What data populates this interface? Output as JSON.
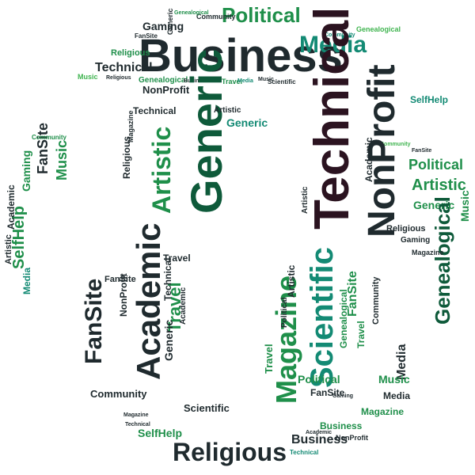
{
  "palette": {
    "dark": "#1f2a2e",
    "deep_green": "#0e5a3a",
    "mid_green": "#1f8f4a",
    "teal": "#138a74",
    "light_green": "#3fb44f",
    "plum": "#2b1320"
  },
  "words": [
    {
      "id": "business-main",
      "text": "Business",
      "tone": "dark"
    },
    {
      "id": "political-top",
      "text": "Political",
      "tone": "mid_green"
    },
    {
      "id": "media-top",
      "text": "Media",
      "tone": "teal"
    },
    {
      "id": "community-top",
      "text": "Community",
      "tone": "dark"
    },
    {
      "id": "gaming-top",
      "text": "Gaming",
      "tone": "dark"
    },
    {
      "id": "genealogical-top",
      "text": "Genealogical",
      "tone": "mid_green"
    },
    {
      "id": "generic-top",
      "text": "Generic",
      "tone": "dark"
    },
    {
      "id": "community-top2",
      "text": "Community",
      "tone": "teal"
    },
    {
      "id": "religious-top",
      "text": "Religious",
      "tone": "mid_green"
    },
    {
      "id": "fansite-top",
      "text": "FanSite",
      "tone": "dark"
    },
    {
      "id": "technical-top",
      "text": "Technical",
      "tone": "dark"
    },
    {
      "id": "music-top",
      "text": "Music",
      "tone": "light_green"
    },
    {
      "id": "religious-top2",
      "text": "Religious",
      "tone": "dark"
    },
    {
      "id": "genealogical-mid",
      "text": "Genealogical",
      "tone": "mid_green"
    },
    {
      "id": "nonprofit-mid",
      "text": "NonProfit",
      "tone": "dark"
    },
    {
      "id": "technical-mid",
      "text": "Technical",
      "tone": "dark"
    },
    {
      "id": "business-small",
      "text": "Business",
      "tone": "dark"
    },
    {
      "id": "music-small",
      "text": "Music",
      "tone": "dark"
    },
    {
      "id": "travel-small",
      "text": "Travel",
      "tone": "mid_green"
    },
    {
      "id": "media-small",
      "text": "Media",
      "tone": "teal"
    },
    {
      "id": "music-small2",
      "text": "Music",
      "tone": "dark"
    },
    {
      "id": "scientific-small",
      "text": "Scientific",
      "tone": "dark"
    },
    {
      "id": "genealogical-small",
      "text": "Genealogical",
      "tone": "light_green"
    },
    {
      "id": "community-small",
      "text": "Community",
      "tone": "light_green"
    },
    {
      "id": "fansite-small",
      "text": "FanSite",
      "tone": "dark"
    },
    {
      "id": "technical-big",
      "text": "Technical",
      "tone": "plum"
    },
    {
      "id": "nonprofit-big",
      "text": "NonProfit",
      "tone": "dark"
    },
    {
      "id": "generic-big",
      "text": "Generic",
      "tone": "deep_green"
    },
    {
      "id": "artistic-big",
      "text": "Artistic",
      "tone": "mid_green"
    },
    {
      "id": "artistic-small",
      "text": "Artistic",
      "tone": "dark"
    },
    {
      "id": "generic-small",
      "text": "Generic",
      "tone": "teal"
    },
    {
      "id": "magazine-small",
      "text": "Magazine",
      "tone": "dark"
    },
    {
      "id": "religious-mid",
      "text": "Religious",
      "tone": "dark"
    },
    {
      "id": "selfhelp-right",
      "text": "SelfHelp",
      "tone": "teal"
    },
    {
      "id": "political-right",
      "text": "Political",
      "tone": "mid_green"
    },
    {
      "id": "artistic-right",
      "text": "Artistic",
      "tone": "mid_green"
    },
    {
      "id": "generic-right",
      "text": "Generic",
      "tone": "mid_green"
    },
    {
      "id": "academic-right",
      "text": "Academic",
      "tone": "dark"
    },
    {
      "id": "genealogical-right",
      "text": "Genealogical",
      "tone": "deep_green"
    },
    {
      "id": "music-right",
      "text": "Music",
      "tone": "mid_green"
    },
    {
      "id": "religious-right",
      "text": "Religious",
      "tone": "dark"
    },
    {
      "id": "gaming-right",
      "text": "Gaming",
      "tone": "dark"
    },
    {
      "id": "magazine-right",
      "text": "Magazine",
      "tone": "dark"
    },
    {
      "id": "artistic-right2",
      "text": "Artistic",
      "tone": "dark"
    },
    {
      "id": "fansite-left",
      "text": "FanSite",
      "tone": "dark"
    },
    {
      "id": "music-left",
      "text": "Music",
      "tone": "mid_green"
    },
    {
      "id": "gaming-left",
      "text": "Gaming",
      "tone": "mid_green"
    },
    {
      "id": "selfhelp-left",
      "text": "SelfHelp",
      "tone": "mid_green"
    },
    {
      "id": "academic-left",
      "text": "Academic",
      "tone": "dark"
    },
    {
      "id": "artistic-left",
      "text": "Artistic",
      "tone": "dark"
    },
    {
      "id": "media-left",
      "text": "Media",
      "tone": "teal"
    },
    {
      "id": "community-left",
      "text": "Community",
      "tone": "mid_green"
    },
    {
      "id": "academic-bl",
      "text": "Academic",
      "tone": "dark"
    },
    {
      "id": "fansite-bl",
      "text": "FanSite",
      "tone": "dark"
    },
    {
      "id": "travel-bl",
      "text": "Travel",
      "tone": "mid_green"
    },
    {
      "id": "technical-bl",
      "text": "Technical",
      "tone": "dark"
    },
    {
      "id": "fansite-bl2",
      "text": "FanSite",
      "tone": "dark"
    },
    {
      "id": "travel-bl2",
      "text": "Travel",
      "tone": "dark"
    },
    {
      "id": "academic-bl2",
      "text": "Academic",
      "tone": "dark"
    },
    {
      "id": "nonprofit-bl",
      "text": "NonProfit",
      "tone": "dark"
    },
    {
      "id": "generic-bl",
      "text": "Generic",
      "tone": "dark"
    },
    {
      "id": "community-bl",
      "text": "Community",
      "tone": "dark"
    },
    {
      "id": "scientific-mid",
      "text": "Scientific",
      "tone": "teal"
    },
    {
      "id": "magazine-mid",
      "text": "Magazine",
      "tone": "mid_green"
    },
    {
      "id": "fansite-mid",
      "text": "FanSite",
      "tone": "mid_green"
    },
    {
      "id": "genealogical-br",
      "text": "Genealogical",
      "tone": "mid_green"
    },
    {
      "id": "travel-br",
      "text": "Travel",
      "tone": "mid_green"
    },
    {
      "id": "community-br",
      "text": "Community",
      "tone": "dark"
    },
    {
      "id": "artistic-br",
      "text": "Artistic",
      "tone": "dark"
    },
    {
      "id": "political-br",
      "text": "Political",
      "tone": "dark"
    },
    {
      "id": "travel-br2",
      "text": "Travel",
      "tone": "mid_green"
    },
    {
      "id": "political-br2",
      "text": "Political",
      "tone": "mid_green"
    },
    {
      "id": "fansite-br",
      "text": "FanSite",
      "tone": "dark"
    },
    {
      "id": "media-br",
      "text": "Media",
      "tone": "dark"
    },
    {
      "id": "music-br",
      "text": "Music",
      "tone": "mid_green"
    },
    {
      "id": "media-br2",
      "text": "Media",
      "tone": "dark"
    },
    {
      "id": "magazine-br",
      "text": "Magazine",
      "tone": "mid_green"
    },
    {
      "id": "scientific-bottom",
      "text": "Scientific",
      "tone": "dark"
    },
    {
      "id": "selfhelp-bottom",
      "text": "SelfHelp",
      "tone": "mid_green"
    },
    {
      "id": "religious-bottom",
      "text": "Religious",
      "tone": "dark"
    },
    {
      "id": "business-bottom",
      "text": "Business",
      "tone": "dark"
    },
    {
      "id": "business-bottom2",
      "text": "Business",
      "tone": "mid_green"
    },
    {
      "id": "nonprofit-bottom",
      "text": "NonProfit",
      "tone": "dark"
    },
    {
      "id": "technical-bottom",
      "text": "Technical",
      "tone": "teal"
    },
    {
      "id": "academic-bottom",
      "text": "Academic",
      "tone": "dark"
    },
    {
      "id": "magazine-bottom",
      "text": "Magazine",
      "tone": "dark"
    },
    {
      "id": "technical-bottom2",
      "text": "Technical",
      "tone": "dark"
    },
    {
      "id": "gaming-bottom",
      "text": "Gaming",
      "tone": "dark"
    }
  ]
}
